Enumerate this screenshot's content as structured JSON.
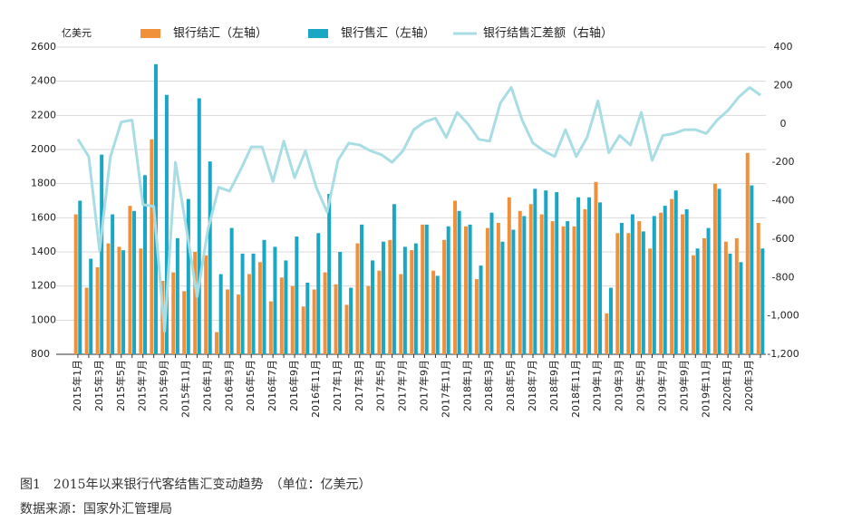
{
  "chart_data": {
    "type": "bar_line",
    "y_axis_label": "亿美元",
    "caption": "图1　2015年以来银行代客结售汇变动趋势　（单位：亿美元）",
    "source": "数据来源：国家外汇管理局",
    "categories": [
      "2015年1月",
      null,
      "2015年3月",
      null,
      "2015年5月",
      null,
      "2015年7月",
      null,
      "2015年9月",
      null,
      "2015年11月",
      null,
      "2016年1月",
      null,
      "2016年3月",
      null,
      "2016年5月",
      null,
      "2016年7月",
      null,
      "2016年9月",
      null,
      "2016年11月",
      null,
      "2017年1月",
      null,
      "2017年3月",
      null,
      "2017年5月",
      null,
      "2017年7月",
      null,
      "2017年9月",
      null,
      "2017年11月",
      null,
      "2018年1月",
      null,
      "2018年3月",
      null,
      "2018年5月",
      null,
      "2018年7月",
      null,
      "2018年9月",
      null,
      "2018年11月",
      null,
      "2019年1月",
      null,
      "2019年3月",
      null,
      "2019年5月",
      null,
      "2019年7月",
      null,
      "2019年9月",
      null,
      "2019年11月",
      null,
      "2020年1月",
      null,
      "2020年3月",
      null
    ],
    "series": [
      {
        "name": "银行结汇（左轴）",
        "color": "#f0913a",
        "kind": "bar",
        "values": [
          1620,
          1190,
          1310,
          1450,
          1430,
          1670,
          1420,
          2060,
          1230,
          1280,
          1170,
          1400,
          1380,
          930,
          1180,
          1150,
          1270,
          1340,
          1110,
          1250,
          1200,
          1080,
          1180,
          1280,
          1210,
          1090,
          1450,
          1200,
          1290,
          1470,
          1270,
          1410,
          1560,
          1290,
          1470,
          1700,
          1550,
          1240,
          1540,
          1570,
          1720,
          1640,
          1680,
          1620,
          1580,
          1550,
          1550,
          1650,
          1810,
          1040,
          1510,
          1510,
          1580,
          1420,
          1630,
          1710,
          1620,
          1380,
          1480,
          1800,
          1460,
          1480,
          1980,
          1570
        ]
      },
      {
        "name": "银行售汇（左轴）",
        "color": "#1aa7c4",
        "kind": "bar",
        "values": [
          1700,
          1360,
          1970,
          1620,
          1410,
          1640,
          1850,
          2500,
          2320,
          1480,
          1710,
          2300,
          1930,
          1270,
          1540,
          1390,
          1390,
          1470,
          1430,
          1350,
          1490,
          1220,
          1510,
          1740,
          1400,
          1190,
          1560,
          1350,
          1460,
          1680,
          1430,
          1450,
          1560,
          1260,
          1550,
          1640,
          1560,
          1320,
          1630,
          1460,
          1530,
          1610,
          1770,
          1760,
          1750,
          1580,
          1720,
          1720,
          1690,
          1190,
          1570,
          1620,
          1520,
          1610,
          1670,
          1760,
          1650,
          1420,
          1540,
          1770,
          1390,
          1340,
          1790,
          1420
        ]
      },
      {
        "name": "银行结售汇差额（右轴）",
        "color": "#a8dde3",
        "kind": "line",
        "axis": "y2",
        "values": [
          -80,
          -170,
          -660,
          -170,
          10,
          20,
          -420,
          -430,
          -1080,
          -200,
          -540,
          -900,
          -550,
          -330,
          -350,
          -240,
          -120,
          -120,
          -300,
          -90,
          -280,
          -140,
          -330,
          -460,
          -190,
          -100,
          -110,
          -140,
          -160,
          -200,
          -140,
          -30,
          10,
          30,
          -70,
          60,
          0,
          -80,
          -90,
          110,
          190,
          20,
          -100,
          -140,
          -170,
          -30,
          -170,
          -70,
          120,
          -150,
          -60,
          -110,
          60,
          -190,
          -60,
          -50,
          -30,
          -30,
          -50,
          20,
          70,
          140,
          190,
          150
        ]
      }
    ],
    "ylim": [
      800,
      2600
    ],
    "yticks": [
      800,
      1000,
      1200,
      1400,
      1600,
      1800,
      2000,
      2200,
      2400,
      2600
    ],
    "y2lim": [
      -1200,
      400
    ],
    "y2ticks": [
      {
        "value": -1200,
        "label": "-1,200"
      },
      {
        "value": -1000,
        "label": "-1,000"
      },
      -800,
      -600,
      -400,
      -200,
      0,
      200,
      400
    ],
    "grid": true
  }
}
